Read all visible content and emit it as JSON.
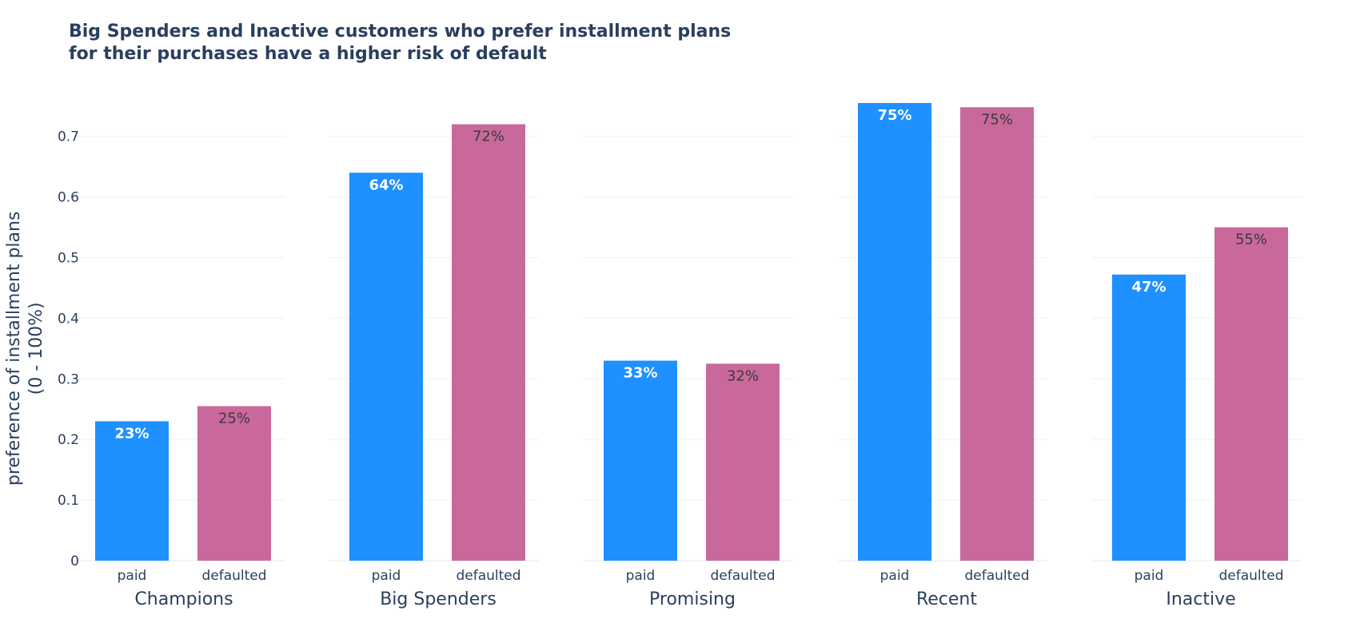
{
  "chart_data": {
    "type": "bar",
    "title_lines": [
      "Big Spenders and Inactive customers who prefer installment plans",
      "for their purchases have a higher risk of default"
    ],
    "ylabel_lines": [
      "preference of installment plans",
      "(0 - 100%)"
    ],
    "ylim": [
      0,
      0.78
    ],
    "yticks": [
      0,
      0.1,
      0.2,
      0.3,
      0.4,
      0.5,
      0.6,
      0.7
    ],
    "ytick_labels": [
      "0",
      "0.1",
      "0.2",
      "0.3",
      "0.4",
      "0.5",
      "0.6",
      "0.7"
    ],
    "grid": true,
    "legend": "none",
    "bar_categories": [
      "paid",
      "defaulted"
    ],
    "colors": {
      "paid": "#1e90ff",
      "defaulted": "#c9699b"
    },
    "panels": [
      {
        "segment": "Champions",
        "values": [
          0.23,
          0.255
        ],
        "labels": [
          "23%",
          "25%"
        ]
      },
      {
        "segment": "Big Spenders",
        "values": [
          0.64,
          0.72
        ],
        "labels": [
          "64%",
          "72%"
        ]
      },
      {
        "segment": "Promising",
        "values": [
          0.33,
          0.325
        ],
        "labels": [
          "33%",
          "32%"
        ]
      },
      {
        "segment": "Recent",
        "values": [
          0.755,
          0.748
        ],
        "labels": [
          "75%",
          "75%"
        ]
      },
      {
        "segment": "Inactive",
        "values": [
          0.472,
          0.55
        ],
        "labels": [
          "47%",
          "55%"
        ]
      }
    ]
  }
}
